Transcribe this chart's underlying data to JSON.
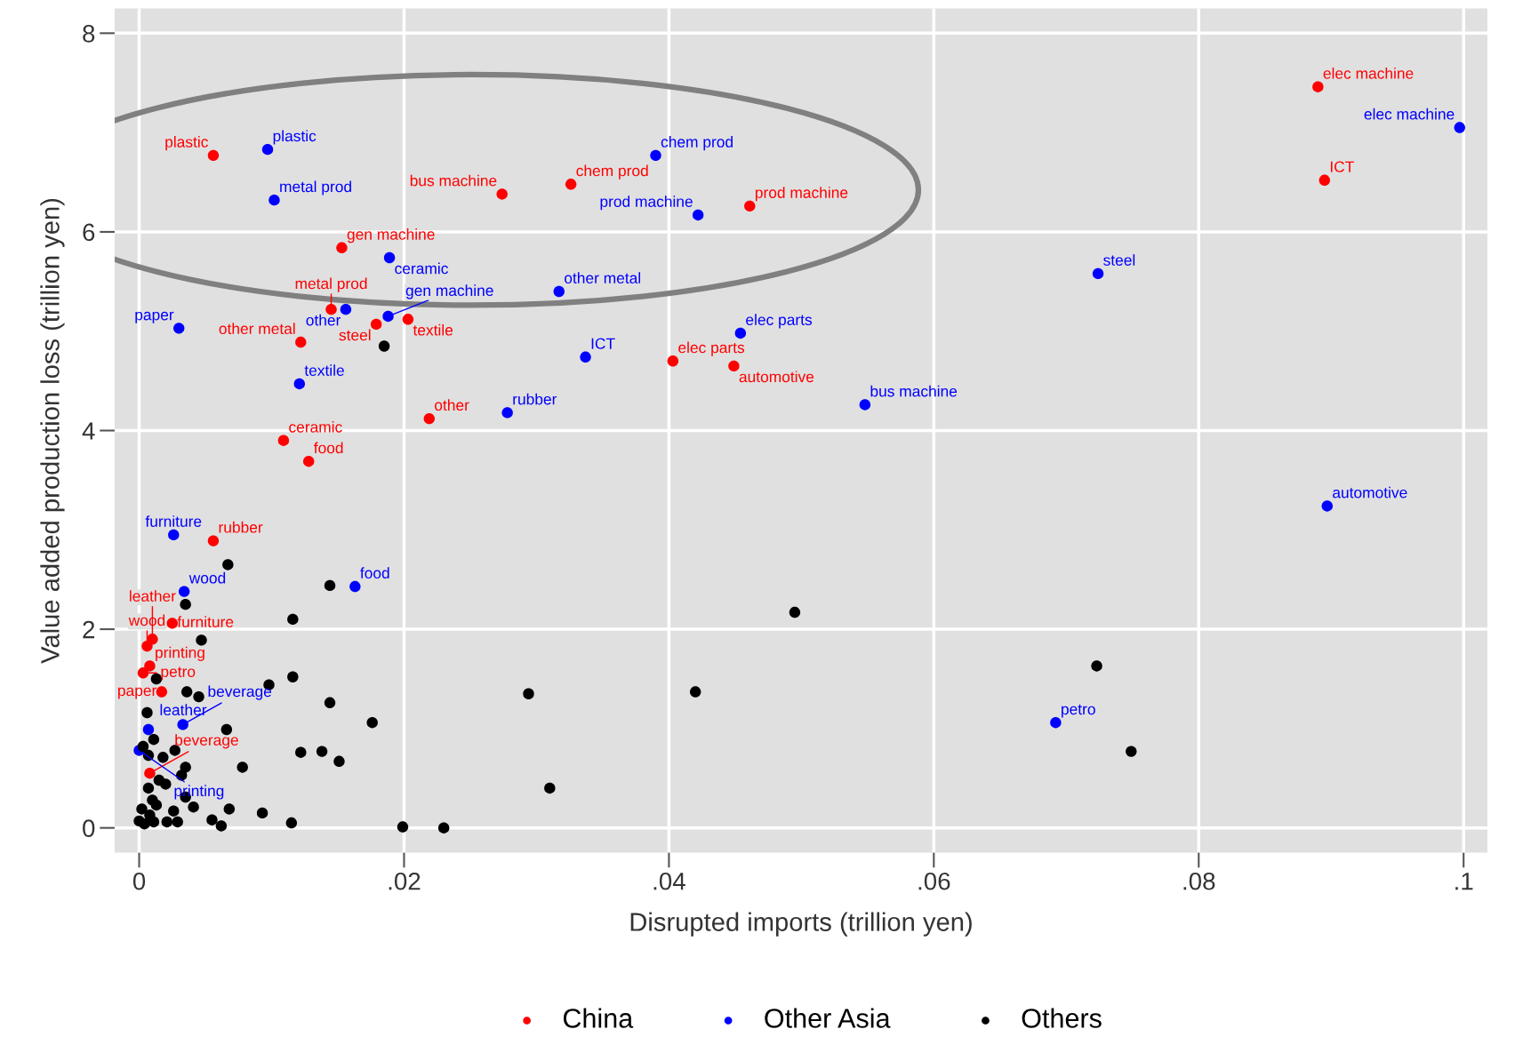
{
  "chart_data": {
    "type": "scatter",
    "xlabel": "Disrupted imports (trillion yen)",
    "ylabel": "Value added production loss (trillion yen)",
    "xlim": [
      -0.00185,
      0.1018
    ],
    "ylim": [
      -0.25,
      8.25
    ],
    "xticks": [
      {
        "value": 0,
        "label": "0"
      },
      {
        "value": 0.02,
        "label": ".02"
      },
      {
        "value": 0.04,
        "label": ".04"
      },
      {
        "value": 0.06,
        "label": ".06"
      },
      {
        "value": 0.08,
        "label": ".08"
      },
      {
        "value": 0.1,
        "label": ".1"
      }
    ],
    "yticks": [
      0,
      2,
      4,
      6,
      8
    ],
    "grid": true,
    "legend": "bottom",
    "marker": "circle",
    "series": [
      {
        "name": "China",
        "color": "#ff0000",
        "x": [
          0.089,
          0.0895,
          0.0056,
          0.0274,
          0.0326,
          0.0461,
          0.0153,
          0.0145,
          0.0179,
          0.0203,
          0.0122,
          0.0403,
          0.0449,
          0.0219,
          0.0109,
          0.0128,
          0.0056,
          0.0025,
          0.001,
          0.0006,
          0.0008,
          0.0003,
          0.0017,
          0.0008
        ],
        "values": [
          7.46,
          6.52,
          6.77,
          6.38,
          6.48,
          6.26,
          5.84,
          5.22,
          5.07,
          5.12,
          4.89,
          4.7,
          4.65,
          4.12,
          3.9,
          3.69,
          2.89,
          2.06,
          1.9,
          1.83,
          1.63,
          1.56,
          1.37,
          0.55
        ],
        "value_labels": [
          "elec machine",
          "ICT",
          "plastic",
          "bus machine",
          "chem prod",
          "prod machine",
          "gen machine",
          "metal prod",
          "steel",
          "textile",
          "other metal",
          "elec parts",
          "automotive",
          "other",
          "ceramic",
          "food",
          "rubber",
          "furniture",
          "leather",
          "wood",
          "printing",
          "petro",
          "paper",
          "beverage"
        ]
      },
      {
        "name": "Other Asia",
        "color": "#0000ff",
        "x": [
          0.0997,
          0.039,
          0.0097,
          0.0102,
          0.0422,
          0.0189,
          0.0724,
          0.0317,
          0.0156,
          0.0188,
          0.0121,
          0.003,
          0.0337,
          0.0454,
          0.0278,
          0.0548,
          0.0897,
          0.0026,
          0.0034,
          0.0163,
          0.0692,
          0.0033,
          0.0007,
          0.0
        ],
        "values": [
          7.05,
          6.77,
          6.83,
          6.32,
          6.17,
          5.74,
          5.58,
          5.4,
          5.22,
          5.15,
          4.47,
          5.03,
          4.74,
          4.98,
          4.18,
          4.26,
          3.24,
          2.95,
          2.38,
          2.43,
          1.06,
          1.04,
          0.99,
          0.78
        ],
        "value_labels": [
          "elec machine",
          "chem prod",
          "plastic",
          "metal prod",
          "prod machine",
          "ceramic",
          "steel",
          "other metal",
          "other",
          "gen machine",
          "textile",
          "paper",
          "ICT",
          "elec parts",
          "rubber",
          "bus machine",
          "automotive",
          "furniture",
          "wood",
          "food",
          "petro",
          "beverage",
          "leather",
          "printing"
        ]
      },
      {
        "name": "Others",
        "color": "#000000",
        "x": [
          0.0185,
          0.0067,
          0.0144,
          0.0035,
          0.0116,
          0.0495,
          0.0047,
          0.0723,
          0.0098,
          0.0116,
          0.0294,
          0.042,
          0.0144,
          0.0176,
          0.0066,
          0.0078,
          0.0122,
          0.0138,
          0.0151,
          0.0749,
          0.031,
          0.0093,
          0.0115,
          0.0199,
          0.023,
          0.0068,
          0.0055,
          0.0062,
          0.0013,
          0.0036,
          0.0045,
          0.0006,
          0.0011,
          0.0003,
          0.0027,
          0.0007,
          0.0018,
          0.0035,
          0.0032,
          0.0015,
          0.002,
          0.0007,
          0.0035,
          0.001,
          0.0013,
          0.0041,
          0.0002,
          0.0026,
          0.0008,
          0.0,
          0.0011,
          0.0021,
          0.0029,
          0.0004
        ],
        "values": [
          4.85,
          2.65,
          2.44,
          2.25,
          2.1,
          2.17,
          1.89,
          1.63,
          1.44,
          1.52,
          1.35,
          1.37,
          1.26,
          1.06,
          0.99,
          0.61,
          0.76,
          0.77,
          0.67,
          0.77,
          0.4,
          0.15,
          0.05,
          0.01,
          0.0,
          0.19,
          0.08,
          0.02,
          1.5,
          1.37,
          1.32,
          1.16,
          0.89,
          0.82,
          0.78,
          0.73,
          0.71,
          0.61,
          0.53,
          0.48,
          0.44,
          0.4,
          0.31,
          0.28,
          0.23,
          0.21,
          0.19,
          0.17,
          0.13,
          0.07,
          0.06,
          0.06,
          0.06,
          0.04
        ]
      }
    ]
  }
}
